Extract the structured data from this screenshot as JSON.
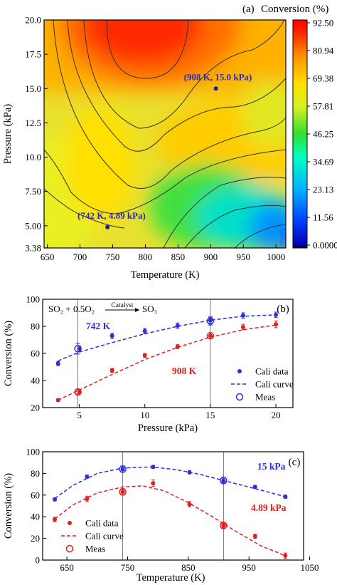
{
  "chart_data": [
    {
      "type": "heatmap",
      "panel_label": "(a)",
      "colorbar_title": "Conversion (%)",
      "xlabel": "Temperature (K)",
      "ylabel": "Pressure (kPa)",
      "xlim": [
        645,
        1015
      ],
      "ylim": [
        3.38,
        20.0
      ],
      "xticks": [
        "650",
        "700",
        "750",
        "800",
        "850",
        "900",
        "950",
        "1000"
      ],
      "yticks": [
        "3.38",
        "5.00",
        "7.50",
        "10.0",
        "12.5",
        "15.0",
        "17.5",
        "20.0"
      ],
      "colorbar_ticks": [
        "92.50",
        "80.94",
        "69.38",
        "57.81",
        "46.25",
        "34.69",
        "23.13",
        "11.56",
        "0.0000"
      ],
      "colorbar_range": [
        0,
        92.5
      ],
      "annotations": [
        {
          "label": "(908 K, 15.0 kPa)",
          "x": 908,
          "y": 15.0
        },
        {
          "label": "(742 K, 4.89 kPa)",
          "x": 742,
          "y": 4.89
        }
      ],
      "grid": false
    },
    {
      "type": "scatter",
      "panel_label": "(b)",
      "xlabel": "Pressure (kPa)",
      "ylabel": "Conversion (%)",
      "xlim": [
        2.2,
        21.3
      ],
      "ylim": [
        20,
        100
      ],
      "xticks": [
        "5",
        "10",
        "15",
        "20"
      ],
      "yticks": [
        "20",
        "40",
        "60",
        "80",
        "100"
      ],
      "reaction": {
        "lhs": "SO₂ + 0.5O₂",
        "catalyst": "Catalyst",
        "rhs": "SO₃"
      },
      "vlines": [
        4.89,
        15.0
      ],
      "series": [
        {
          "name": "742 K",
          "color": "#2f2fd8",
          "x": [
            3.38,
            5.0,
            7.5,
            10.0,
            12.5,
            15.0,
            17.5,
            20.0
          ],
          "values": [
            52.5,
            63.5,
            73.0,
            76.5,
            80.5,
            84.5,
            88.0,
            88.5
          ],
          "errors": [
            1.5,
            2.0,
            2.0,
            2.0,
            2.0,
            2.0,
            2.0,
            2.0
          ],
          "curve": [
            [
              3.38,
              54.5
            ],
            [
              5,
              61
            ],
            [
              7.5,
              68
            ],
            [
              10,
              74.5
            ],
            [
              12.5,
              80
            ],
            [
              15,
              84.5
            ],
            [
              17.5,
              87.5
            ],
            [
              20,
              88.5
            ]
          ]
        },
        {
          "name": "908 K",
          "color": "#e02020",
          "x": [
            3.38,
            5.0,
            7.5,
            10.0,
            12.5,
            15.0,
            17.5,
            20.0
          ],
          "values": [
            25.5,
            31.5,
            47.5,
            58.5,
            65.0,
            73.0,
            79.5,
            81.5
          ],
          "errors": [
            1.0,
            1.5,
            1.5,
            1.5,
            1.5,
            2.0,
            2.0,
            2.5
          ],
          "curve": [
            [
              3.38,
              25.5
            ],
            [
              5,
              33
            ],
            [
              7.5,
              44.5
            ],
            [
              10,
              55.5
            ],
            [
              12.5,
              64.5
            ],
            [
              15,
              72
            ],
            [
              17.5,
              77.5
            ],
            [
              20,
              81
            ]
          ]
        }
      ],
      "meas": [
        {
          "x": 4.89,
          "y": 63.5,
          "err": 4,
          "series": "742 K"
        },
        {
          "x": 15.0,
          "y": 84.0,
          "err": 3,
          "series": "742 K"
        },
        {
          "x": 4.89,
          "y": 31.5,
          "err": 1.5,
          "series": "908 K"
        },
        {
          "x": 15.0,
          "y": 73.0,
          "err": 2,
          "series": "908 K"
        }
      ],
      "legend": {
        "placement": "bottom-right",
        "entries": [
          "Cali data",
          "Cali curve",
          "Meas"
        ],
        "color": "#2f2fd8"
      }
    },
    {
      "type": "scatter",
      "panel_label": "(c)",
      "xlabel": "Temperature (K)",
      "ylabel": "Conversion (%)",
      "xlim": [
        610,
        1040
      ],
      "ylim": [
        0,
        100
      ],
      "xticks": [
        "650",
        "750",
        "850",
        "950",
        "1050"
      ],
      "yticks": [
        "0",
        "20",
        "40",
        "60",
        "80",
        "100"
      ],
      "vlines": [
        742,
        908
      ],
      "series": [
        {
          "name": "15 kPa",
          "color": "#2f2fd8",
          "x": [
            630,
            683,
            742,
            792,
            852,
            908,
            960,
            1010
          ],
          "values": [
            56.0,
            77.0,
            84.0,
            86.0,
            81.0,
            73.0,
            67.5,
            58.5
          ],
          "errors": [
            1.5,
            1.5,
            1.5,
            1.5,
            1.5,
            2.0,
            1.5,
            1.5
          ],
          "curve": [
            [
              630,
              57
            ],
            [
              660,
              69
            ],
            [
              700,
              80
            ],
            [
              742,
              85
            ],
            [
              790,
              86
            ],
            [
              830,
              83.5
            ],
            [
              870,
              79
            ],
            [
              908,
              73.5
            ],
            [
              960,
              66
            ],
            [
              1010,
              58.5
            ]
          ]
        },
        {
          "name": "4.89 kPa",
          "color": "#e02020",
          "x": [
            630,
            683,
            742,
            792,
            852,
            908,
            960,
            1010
          ],
          "values": [
            37.5,
            56.5,
            63.0,
            71.0,
            51.5,
            32.0,
            22.0,
            4.0
          ],
          "errors": [
            2.0,
            2.5,
            2.5,
            3.0,
            2.5,
            2.0,
            2.0,
            2.5
          ],
          "curve": [
            [
              630,
              38
            ],
            [
              660,
              51
            ],
            [
              700,
              62
            ],
            [
              742,
              67.5
            ],
            [
              775,
              68.5
            ],
            [
              810,
              64
            ],
            [
              850,
              53
            ],
            [
              890,
              40
            ],
            [
              930,
              26
            ],
            [
              970,
              13
            ],
            [
              1010,
              4
            ]
          ]
        }
      ],
      "meas": [
        {
          "x": 742,
          "y": 84.0,
          "err": 3,
          "series": "15 kPa"
        },
        {
          "x": 908,
          "y": 73.5,
          "err": 3,
          "series": "15 kPa"
        },
        {
          "x": 742,
          "y": 63.0,
          "err": 3,
          "series": "4.89 kPa"
        },
        {
          "x": 908,
          "y": 32.0,
          "err": 3,
          "series": "4.89 kPa"
        }
      ],
      "legend": {
        "placement": "bottom-left",
        "entries": [
          "Cali data",
          "Cali curve",
          "Meas"
        ],
        "color": "#e02020"
      }
    }
  ]
}
